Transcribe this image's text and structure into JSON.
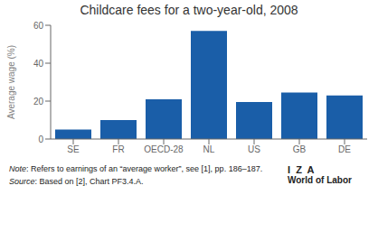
{
  "chart_data": {
    "type": "bar",
    "title": "Childcare fees for a two-year-old, 2008",
    "categories": [
      "SE",
      "FR",
      "OECD-28",
      "NL",
      "US",
      "GB",
      "DE"
    ],
    "values": [
      5,
      10,
      21,
      57,
      19.5,
      24.5,
      23
    ],
    "color": "#1a5ea8",
    "ylabel": "Average wage (%)",
    "ylim": [
      0,
      60
    ],
    "yticks": [
      0,
      20,
      40,
      60
    ],
    "grid": false,
    "annotations": [
      "Note: Refers to earnings of an “average worker”, see [1], pp. 186–187.",
      "Source: Based on [2], Chart PF3.4.A.",
      "I  Z  A",
      "World of Labor"
    ]
  }
}
